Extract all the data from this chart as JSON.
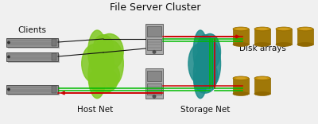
{
  "bg_color": "#f0f0f0",
  "title": "File Server Cluster",
  "labels": {
    "clients": "Clients",
    "host_net": "Host Net",
    "storage_net": "Storage Net",
    "disk_arrays": "Disk arrays"
  },
  "font_size": 7.5,
  "title_font_size": 9.0,
  "colors": {
    "disk_top": "#c8940a",
    "disk_body": "#a07808",
    "disk_side": "#906800",
    "host_net_blob": "#7ec820",
    "storage_net_blob": "#1a8a8a",
    "line_black": "#111111",
    "line_green": "#00bb00",
    "line_red": "#cc0000",
    "rack_body": "#909090",
    "rack_dark": "#404040",
    "rack_light": "#b0b0b0",
    "tower_body": "#aaaaaa",
    "tower_dark": "#555555"
  }
}
